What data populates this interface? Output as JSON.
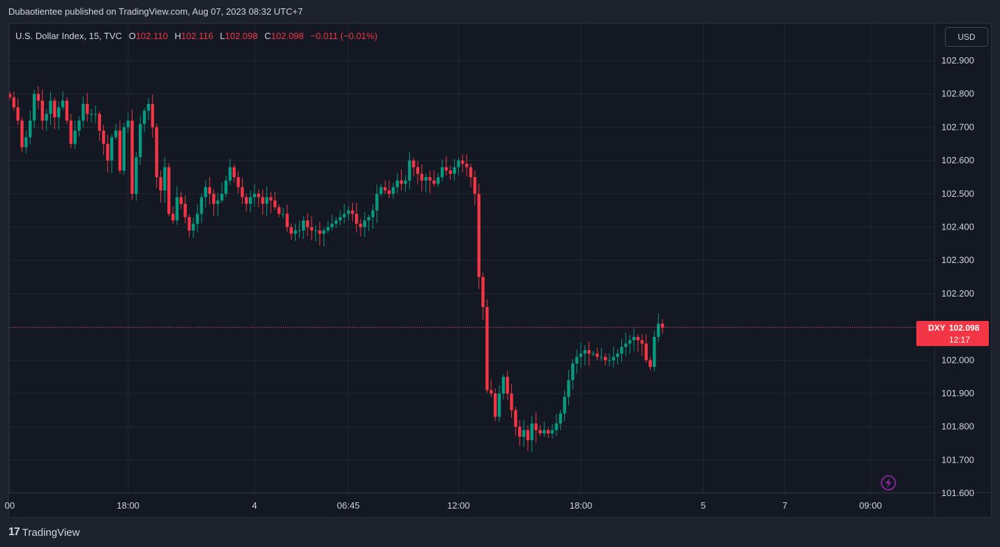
{
  "header": {
    "publisher_text": "Dubaotientee published on TradingView.com, Aug 07, 2023 08:32 UTC+7"
  },
  "legend": {
    "symbol": "U.S. Dollar Index, 15, TVC",
    "open_label": "O",
    "open": "102.110",
    "high_label": "H",
    "high": "102.116",
    "low_label": "L",
    "low": "102.098",
    "close_label": "C",
    "close": "102.098",
    "change": "−0.011 (−0.01%)"
  },
  "currency_button": "USD",
  "price_tag": {
    "ticker": "DXY",
    "price": "102.098",
    "countdown": "12:17"
  },
  "footer": {
    "brand": "TradingView",
    "logo_mark": "17"
  },
  "colors": {
    "up": "#089981",
    "down": "#f23645",
    "background": "#141823",
    "grid": "#232734",
    "text": "#d1d4dc"
  },
  "icons": {
    "alert": "lightning-icon"
  },
  "chart_data": {
    "type": "candlestick",
    "title": "U.S. Dollar Index, 15, TVC",
    "xlabel": "",
    "ylabel": "",
    "ylim": [
      101.6,
      102.95
    ],
    "y_ticks": [
      "102.900",
      "102.800",
      "102.700",
      "102.600",
      "102.500",
      "102.400",
      "102.300",
      "102.200",
      "102.100",
      "102.000",
      "101.900",
      "101.800",
      "101.700",
      "101.600"
    ],
    "x_ticks": [
      {
        "label": "00",
        "bar": 0
      },
      {
        "label": "18:00",
        "bar": 29
      },
      {
        "label": "4",
        "bar": 60
      },
      {
        "label": "06:45",
        "bar": 83
      },
      {
        "label": "12:00",
        "bar": 110
      },
      {
        "label": "18:00",
        "bar": 140
      },
      {
        "label": "5",
        "bar": 170
      },
      {
        "label": "7",
        "bar": 190
      },
      {
        "label": "09:00",
        "bar": 211
      }
    ],
    "last_price": 102.098,
    "grid": true,
    "closes": [
      102.79,
      102.76,
      102.72,
      102.64,
      102.67,
      102.72,
      102.8,
      102.78,
      102.72,
      102.74,
      102.78,
      102.73,
      102.76,
      102.78,
      102.72,
      102.65,
      102.69,
      102.72,
      102.77,
      102.74,
      102.74,
      102.74,
      102.69,
      102.65,
      102.6,
      102.67,
      102.69,
      102.57,
      102.7,
      102.72,
      102.5,
      102.61,
      102.71,
      102.75,
      102.77,
      102.7,
      102.55,
      102.51,
      102.58,
      102.44,
      102.42,
      102.49,
      102.47,
      102.43,
      102.39,
      102.41,
      102.44,
      102.49,
      102.52,
      102.5,
      102.47,
      102.48,
      102.5,
      102.54,
      102.58,
      102.55,
      102.52,
      102.49,
      102.47,
      102.49,
      102.5,
      102.49,
      102.47,
      102.49,
      102.48,
      102.46,
      102.44,
      102.44,
      102.4,
      102.38,
      102.39,
      102.39,
      102.42,
      102.4,
      102.39,
      102.39,
      102.38,
      102.39,
      102.4,
      102.41,
      102.42,
      102.43,
      102.44,
      102.45,
      102.44,
      102.41,
      102.4,
      102.42,
      102.43,
      102.45,
      102.5,
      102.52,
      102.51,
      102.5,
      102.52,
      102.54,
      102.53,
      102.54,
      102.6,
      102.58,
      102.56,
      102.54,
      102.55,
      102.54,
      102.53,
      102.55,
      102.58,
      102.57,
      102.56,
      102.58,
      102.6,
      102.59,
      102.58,
      102.55,
      102.5,
      102.25,
      102.16,
      101.91,
      101.9,
      101.83,
      101.9,
      101.95,
      101.9,
      101.85,
      101.8,
      101.77,
      101.79,
      101.76,
      101.81,
      101.79,
      101.78,
      101.79,
      101.78,
      101.79,
      101.81,
      101.84,
      101.89,
      101.94,
      101.99,
      102.01,
      102.02,
      102.03,
      102.02,
      102.02,
      102.01,
      102.01,
      102.0,
      102.0,
      102.01,
      102.02,
      102.04,
      102.05,
      102.06,
      102.07,
      102.06,
      102.05,
      102.0,
      101.98,
      102.07,
      102.11,
      102.098
    ]
  }
}
